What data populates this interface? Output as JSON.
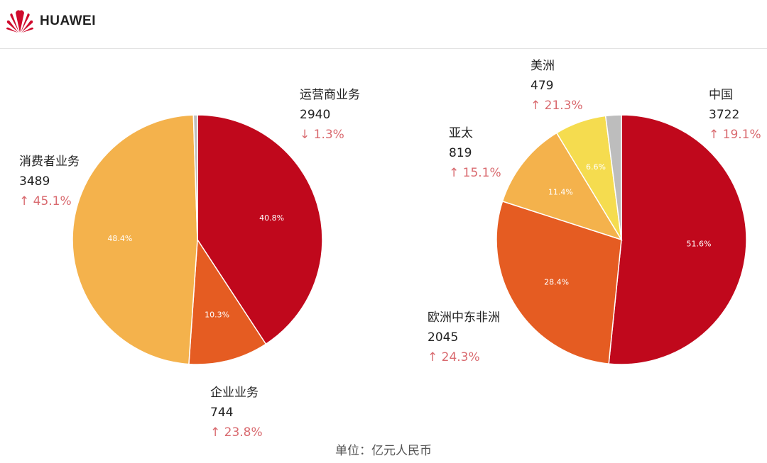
{
  "header": {
    "brand": "HUAWEI"
  },
  "unit_label": "单位：亿元人民币",
  "chart_data": [
    {
      "type": "pie",
      "title": "",
      "slices": [
        {
          "label": "运营商业务",
          "value": 2940,
          "percent_label": "40.8%",
          "change": "↓ 1.3%",
          "color": "#c0081c"
        },
        {
          "label": "企业业务",
          "value": 744,
          "percent_label": "10.3%",
          "change": "↑ 23.8%",
          "color": "#e55c22"
        },
        {
          "label": "消费者业务",
          "value": 3489,
          "percent_label": "48.4%",
          "change": "↑ 45.1%",
          "color": "#f4b24c"
        },
        {
          "label": "",
          "value": 37,
          "percent_label": "",
          "change": "",
          "color": "#bdbdbd"
        }
      ]
    },
    {
      "type": "pie",
      "title": "",
      "slices": [
        {
          "label": "中国",
          "value": 3722,
          "percent_label": "51.6%",
          "change": "↑ 19.1%",
          "color": "#c0081c"
        },
        {
          "label": "欧洲中东非洲",
          "value": 2045,
          "percent_label": "28.4%",
          "change": "↑ 24.3%",
          "color": "#e55c22"
        },
        {
          "label": "亚太",
          "value": 819,
          "percent_label": "11.4%",
          "change": "↑ 15.1%",
          "color": "#f4b24c"
        },
        {
          "label": "美洲",
          "value": 479,
          "percent_label": "6.6%",
          "change": "↑ 21.3%",
          "color": "#f5dc4f"
        },
        {
          "label": "",
          "value": 146,
          "percent_label": "",
          "change": "",
          "color": "#bdbdbd"
        }
      ]
    }
  ]
}
